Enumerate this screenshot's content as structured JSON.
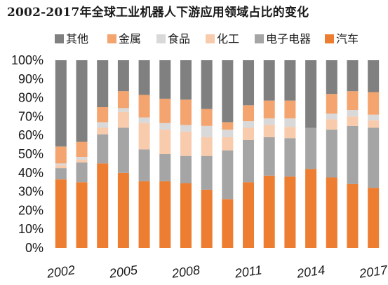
{
  "chart_data": {
    "type": "bar",
    "stacked": true,
    "title": "2002-2017年全球工业机器人下游应用领域占比的变化",
    "categories": [
      "2002",
      "2003",
      "2004",
      "2005",
      "2006",
      "2007",
      "2008",
      "2009",
      "2010",
      "2011",
      "2012",
      "2013",
      "2014",
      "2015",
      "2016",
      "2017"
    ],
    "x_tick_labels": [
      "2002",
      "2005",
      "2008",
      "2011",
      "2014",
      "2017"
    ],
    "y_ticks": [
      "0%",
      "10%",
      "20%",
      "30%",
      "40%",
      "50%",
      "60%",
      "70%",
      "80%",
      "90%",
      "100%"
    ],
    "ylim": [
      0,
      100
    ],
    "unit": "%",
    "legend_position": "top",
    "grid": false,
    "series": [
      {
        "name": "汽车",
        "color": "#ED7D31",
        "values": [
          36.5,
          35,
          45,
          40,
          35.5,
          35.5,
          34.5,
          31,
          26,
          35,
          38.5,
          38,
          42,
          37.5,
          34,
          32
        ]
      },
      {
        "name": "电子电器",
        "color": "#A5A5A5",
        "values": [
          6,
          10.5,
          15.5,
          24,
          17,
          14.5,
          14.5,
          18,
          26,
          22.5,
          20.5,
          20.5,
          22,
          25.5,
          31,
          32
        ]
      },
      {
        "name": "化工",
        "color": "#F8CBAD",
        "values": [
          1.5,
          1.5,
          3.5,
          8.5,
          14,
          13,
          13,
          10,
          7,
          6.5,
          6.5,
          6,
          0,
          5.5,
          5,
          4
        ]
      },
      {
        "name": "食品",
        "color": "#D9D9D9",
        "values": [
          1,
          1.5,
          3,
          2,
          3,
          3.5,
          3.5,
          6,
          4,
          3.5,
          3.5,
          4.5,
          0,
          3,
          3.5,
          3
        ]
      },
      {
        "name": "金属",
        "color": "#F4A46E",
        "values": [
          9,
          8,
          8,
          9,
          12,
          13,
          13.5,
          9,
          4,
          8.5,
          9.5,
          9.5,
          0,
          10.5,
          10,
          12
        ]
      },
      {
        "name": "其他",
        "color": "#808080",
        "values": [
          46,
          43.5,
          25,
          16.5,
          18.5,
          20.5,
          21,
          26,
          33,
          24,
          21.5,
          21.5,
          36,
          18,
          16.5,
          17
        ]
      }
    ],
    "legend_order": [
      "其他",
      "金属",
      "食品",
      "化工",
      "电子电器",
      "汽车"
    ]
  }
}
